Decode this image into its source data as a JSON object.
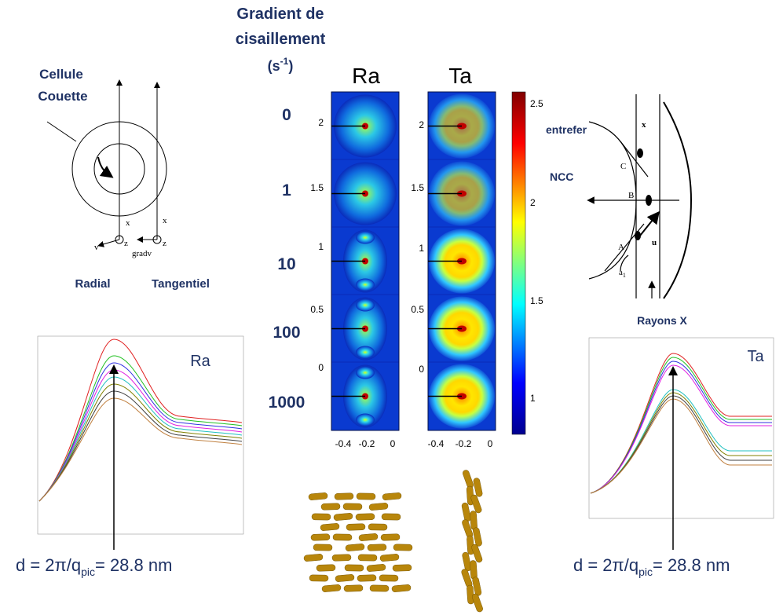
{
  "header": {
    "line1": "Gradient de",
    "line2": "cisaillement",
    "unit_open": "(s",
    "unit_exp": "-1",
    "unit_close": ")"
  },
  "cell": {
    "title_line1": "Cellule",
    "title_line2": "Couette",
    "axis_x": "x",
    "axis_z": "z",
    "axis_v": "v",
    "axis_gradv": "gradv",
    "radial": "Radial",
    "tangential": "Tangentiel"
  },
  "scattering": {
    "columns": [
      "Ra",
      "Ta"
    ],
    "shear_rates": [
      "0",
      "1",
      "10",
      "100",
      "1000"
    ],
    "y_ticks": [
      "2",
      "1.5",
      "1",
      "0.5",
      "0"
    ],
    "x_ticks": [
      "-0.4",
      "-0.2",
      "0"
    ],
    "colorbar_ticks": [
      "2.5",
      "2",
      "1.5",
      "1"
    ]
  },
  "geometry": {
    "gap": "entrefer",
    "ncc": "NCC",
    "label_x": "x",
    "label_c": "C",
    "label_b": "B",
    "label_a": "A",
    "label_u": "u",
    "angle": "a",
    "angle_sub": "1",
    "beam": "Rayons X"
  },
  "profiles": [
    {
      "label": "Ra",
      "result_prefix": "d = 2π/q",
      "result_sub": "pic",
      "result_suffix": "= 28.8 nm"
    },
    {
      "label": "Ta",
      "result_prefix": "d = 2π/q",
      "result_sub": "pic",
      "result_suffix": "= 28.8 nm"
    }
  ]
}
